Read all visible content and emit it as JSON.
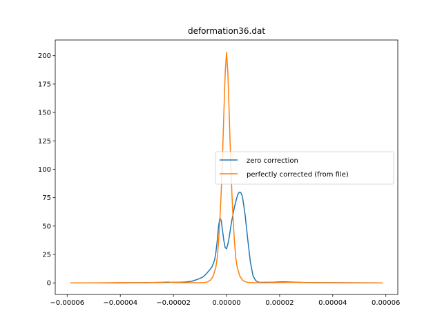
{
  "chart_data": {
    "type": "line",
    "title": "deformation36.dat",
    "xlabel": "",
    "ylabel": "",
    "xlim": [
      -6.45e-05,
      6.45e-05
    ],
    "ylim": [
      -10.2,
      213.8
    ],
    "x_ticks": [
      -6e-05,
      -4e-05,
      -2e-05,
      0.0,
      2e-05,
      4e-05,
      6e-05
    ],
    "x_tick_labels": [
      "−0.00006",
      "−0.00004",
      "−0.00002",
      "0.00000",
      "0.00002",
      "0.00004",
      "0.00006"
    ],
    "y_ticks": [
      0,
      25,
      50,
      75,
      100,
      125,
      150,
      175,
      200
    ],
    "y_tick_labels": [
      "0",
      "25",
      "50",
      "75",
      "100",
      "125",
      "150",
      "175",
      "200"
    ],
    "grid": false,
    "legend": {
      "placement": "center-right"
    },
    "series": [
      {
        "name": "zero correction",
        "color": "#1f77b4",
        "x": [
          -5.88e-05,
          -4e-05,
          -3e-05,
          -2.5e-05,
          -2e-05,
          -1.7e-05,
          -1.5e-05,
          -1.3e-05,
          -1.1e-05,
          -9e-06,
          -8e-06,
          -6.5e-06,
          -5.5e-06,
          -4.5e-06,
          -4e-06,
          -3.5e-06,
          -3e-06,
          -2.5e-06,
          -2e-06,
          -1.5e-06,
          -1e-06,
          -5e-07,
          0.0,
          5e-07,
          1e-06,
          1.5e-06,
          2e-06,
          3e-06,
          4e-06,
          4.5e-06,
          5e-06,
          5.5e-06,
          6e-06,
          7e-06,
          8e-06,
          9e-06,
          1e-05,
          1.1e-05,
          1.2e-05,
          1.3e-05,
          1.5e-05,
          1.8e-05,
          2e-05,
          2.2e-05,
          2.4e-05,
          3e-05,
          4e-05,
          5.88e-05
        ],
        "y": [
          0,
          0,
          0.2,
          0.3,
          0.5,
          0.6,
          0.8,
          1.5,
          3,
          5,
          7,
          11,
          14,
          20,
          27,
          37,
          50,
          57,
          55,
          46,
          37,
          31,
          30,
          34,
          40,
          48,
          55,
          67,
          76,
          79,
          80,
          79,
          76,
          60,
          38,
          18,
          6,
          2,
          0.6,
          0.4,
          0.5,
          0.6,
          0.8,
          0.9,
          0.7,
          0.3,
          0.1,
          0
        ]
      },
      {
        "name": "perfectly corrected (from file)",
        "color": "#ff7f0e",
        "x": [
          -5.88e-05,
          -5e-05,
          -4e-05,
          -3e-05,
          -2.5e-05,
          -2.2e-05,
          -2e-05,
          -1.5e-05,
          -1e-05,
          -8e-06,
          -7e-06,
          -6e-06,
          -5e-06,
          -4e-06,
          -3.5e-06,
          -3e-06,
          -2.5e-06,
          -2e-06,
          -1.5e-06,
          -1e-06,
          -5e-07,
          0.0,
          5e-07,
          1e-06,
          1.5e-06,
          2e-06,
          2.5e-06,
          3e-06,
          3.5e-06,
          4e-06,
          5e-06,
          6e-06,
          7e-06,
          8e-06,
          1e-05,
          1.5e-05,
          2e-05,
          2.5e-05,
          3e-05,
          4e-05,
          5.88e-05
        ],
        "y": [
          0,
          0,
          0.2,
          0.1,
          0.5,
          0.8,
          0.3,
          0.1,
          0.2,
          0.4,
          1,
          2.5,
          6,
          14,
          22,
          36,
          55,
          80,
          112,
          150,
          185,
          203,
          185,
          150,
          112,
          80,
          55,
          36,
          22,
          14,
          6,
          2.5,
          1,
          0.4,
          0.2,
          0.1,
          0.3,
          0.5,
          0.2,
          0.1,
          0
        ]
      }
    ]
  }
}
